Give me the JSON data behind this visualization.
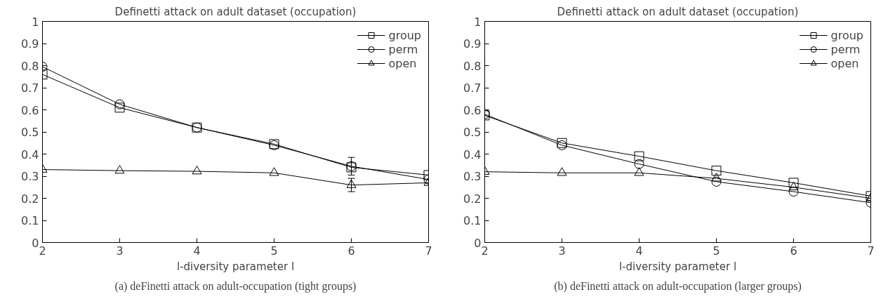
{
  "chart_data": [
    {
      "type": "line",
      "title": "Definetti attack on adult dataset (occupation)",
      "xlabel": "l-diversity parameter l",
      "x": [
        2,
        3,
        4,
        5,
        6,
        7
      ],
      "xlim": [
        2,
        7
      ],
      "xticks": [
        2,
        3,
        4,
        5,
        6,
        7
      ],
      "ylim": [
        0,
        1
      ],
      "yticks": [
        0,
        {
          "value": 0.1,
          "label": "0.1"
        },
        {
          "value": 0.2,
          "label": "0.2"
        },
        {
          "value": 0.3,
          "label": "0.3"
        },
        {
          "value": 0.4,
          "label": "0.4"
        },
        {
          "value": 0.5,
          "label": "0.5"
        },
        {
          "value": 0.6,
          "label": "0.6"
        },
        {
          "value": 0.7,
          "label": "0.7"
        },
        {
          "value": 0.8,
          "label": "0.8"
        },
        {
          "value": 0.9,
          "label": "0.9"
        },
        1
      ],
      "grid": false,
      "legend": "top right",
      "line_style": "solid",
      "series": [
        {
          "name": "group",
          "color": "#000000",
          "marker": "square",
          "values": [
            0.76,
            0.61,
            0.52,
            0.445,
            0.34,
            0.305
          ]
        },
        {
          "name": "perm",
          "color": "#000000",
          "marker": "circle",
          "values": [
            0.795,
            0.625,
            0.52,
            0.44,
            0.345,
            0.285
          ],
          "errors": [
            null,
            null,
            null,
            null,
            0.04,
            null
          ]
        },
        {
          "name": "open",
          "color": "#000000",
          "marker": "triangle",
          "values": [
            0.33,
            0.325,
            0.322,
            0.315,
            0.26,
            0.27
          ],
          "errors": [
            null,
            null,
            null,
            null,
            0.03,
            null
          ]
        }
      ],
      "annotations": [
        "(a) deFinetti attack on adult-occupation (tight groups)"
      ]
    },
    {
      "type": "line",
      "title": "Definetti attack on adult dataset (occupation)",
      "xlabel": "l-diversity parameter l",
      "x": [
        2,
        3,
        4,
        5,
        6,
        7
      ],
      "xlim": [
        2,
        7
      ],
      "xticks": [
        2,
        3,
        4,
        5,
        6,
        7
      ],
      "ylim": [
        0,
        1
      ],
      "yticks": [
        0,
        {
          "value": 0.1,
          "label": "0.1"
        },
        {
          "value": 0.2,
          "label": "0.2"
        },
        {
          "value": 0.3,
          "label": "0.3"
        },
        {
          "value": 0.4,
          "label": "0.4"
        },
        {
          "value": 0.5,
          "label": "0.5"
        },
        {
          "value": 0.6,
          "label": "0.6"
        },
        {
          "value": 0.7,
          "label": "0.7"
        },
        {
          "value": 0.8,
          "label": "0.8"
        },
        {
          "value": 0.9,
          "label": "0.9"
        },
        1
      ],
      "grid": false,
      "legend": "top right",
      "line_style": "solid",
      "series": [
        {
          "name": "group",
          "color": "#000000",
          "marker": "square",
          "values": [
            0.575,
            0.45,
            0.39,
            0.325,
            0.27,
            0.21
          ]
        },
        {
          "name": "perm",
          "color": "#000000",
          "marker": "circle",
          "values": [
            0.58,
            0.44,
            0.355,
            0.275,
            0.23,
            0.18
          ]
        },
        {
          "name": "open",
          "color": "#000000",
          "marker": "triangle",
          "values": [
            0.32,
            0.315,
            0.315,
            0.29,
            0.25,
            0.2
          ]
        }
      ],
      "annotations": [
        "(b) deFinetti attack on adult-occupation (larger groups)"
      ]
    }
  ]
}
